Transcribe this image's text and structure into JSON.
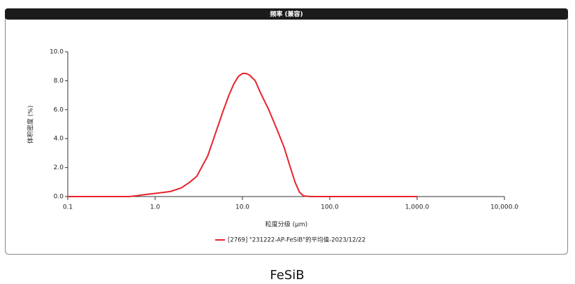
{
  "chart_data": {
    "type": "line",
    "title": "频率 (兼容)",
    "x_label": "粒度分级 (μm)",
    "y_label": "体积密度 (%)",
    "caption": "FeSiB",
    "x_scale": "log",
    "xlim": [
      0.1,
      10000
    ],
    "ylim": [
      0,
      10
    ],
    "xticks": [
      0.1,
      {
        "value": 1,
        "label": "1.0"
      },
      {
        "value": 10,
        "label": "10.0"
      },
      {
        "value": 100,
        "label": "100.0"
      },
      {
        "value": 1000,
        "label": "1,000.0"
      },
      {
        "value": 10000,
        "label": "10,000.0"
      }
    ],
    "yticks": [
      {
        "value": 0,
        "label": "0.0"
      },
      {
        "value": 2,
        "label": "2.0"
      },
      {
        "value": 4,
        "label": "4.0"
      },
      {
        "value": 6,
        "label": "6.0"
      },
      {
        "value": 8,
        "label": "8.0"
      },
      {
        "value": 10,
        "label": "10.0"
      }
    ],
    "legend": "bottom",
    "x": [
      0.1,
      0.5,
      0.6,
      0.8,
      1,
      1.5,
      2,
      2.5,
      3,
      4,
      5,
      6,
      7,
      8,
      9,
      10,
      11,
      12,
      14,
      16,
      20,
      25,
      30,
      35,
      40,
      45,
      50,
      60,
      100,
      1000
    ],
    "series": [
      {
        "name": "[2769] \"231222-AP-FeSiB\"的平均值-2023/12/22",
        "color": "#e8222a",
        "values": [
          0,
          0,
          0.05,
          0.15,
          0.22,
          0.35,
          0.6,
          1.0,
          1.4,
          2.8,
          4.5,
          5.9,
          7.0,
          7.8,
          8.3,
          8.5,
          8.5,
          8.4,
          8.0,
          7.2,
          6.0,
          4.6,
          3.4,
          2.1,
          1.0,
          0.3,
          0.05,
          0,
          0,
          0
        ]
      }
    ]
  }
}
